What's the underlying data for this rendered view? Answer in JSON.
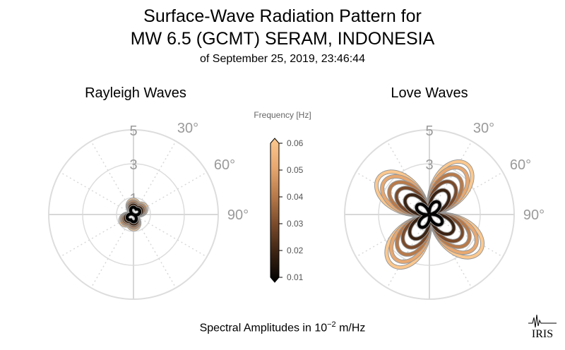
{
  "title_line1": "Surface-Wave Radiation Pattern for",
  "title_line2": "MW 6.5 (GCMT) SERAM, INDONESIA",
  "subtitle": "of September 25, 2019, 23:46:44",
  "footer": {
    "prefix": "Spectral Amplitudes in 10",
    "exponent": "−2",
    "unit": " m/Hz"
  },
  "logo_text": "IRIS",
  "chart_data": [
    {
      "type": "polar",
      "title": "Rayleigh Waves",
      "radial_ticks": [
        "1",
        "3",
        "5"
      ],
      "radial_max": 5,
      "angle_ticks": [
        "30°",
        "60°",
        "90°"
      ],
      "pattern": "four-lobe (two-node), small amplitude",
      "frequencies": [
        0.01,
        0.02,
        0.03,
        0.04,
        0.05,
        0.06
      ],
      "peak_amplitudes": [
        0.5,
        0.65,
        0.75,
        0.85,
        0.9,
        1.0
      ]
    },
    {
      "type": "polar",
      "title": "Love Waves",
      "radial_ticks": [
        "3",
        "5"
      ],
      "radial_max": 5,
      "angle_ticks": [
        "30°",
        "60°",
        "90°"
      ],
      "pattern": "four-lobe (quadrant)",
      "frequencies": [
        0.01,
        0.02,
        0.03,
        0.04,
        0.05,
        0.06
      ],
      "peak_amplitudes": [
        0.9,
        1.7,
        2.3,
        2.8,
        3.3,
        3.7
      ]
    }
  ],
  "colorbar": {
    "title": "Frequency [Hz]",
    "ticks": [
      "0.06",
      "0.05",
      "0.04",
      "0.03",
      "0.02",
      "0.01"
    ],
    "min": 0.01,
    "max": 0.06,
    "colors": [
      "#000000",
      "#3a2212",
      "#7a4a2a",
      "#b87a4a",
      "#e8a870",
      "#fcc88e"
    ]
  }
}
